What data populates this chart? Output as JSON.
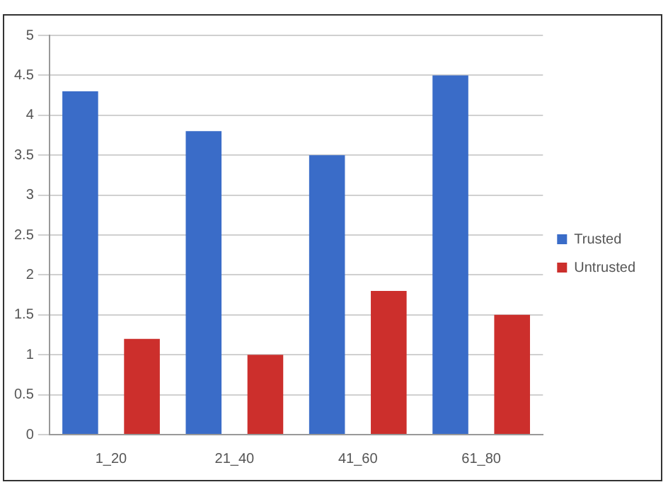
{
  "chart_data": {
    "type": "bar",
    "categories": [
      "1_20",
      "21_40",
      "41_60",
      "61_80"
    ],
    "series": [
      {
        "name": "Trusted",
        "color": "#3a6cc8",
        "values": [
          4.3,
          3.8,
          3.5,
          4.5
        ]
      },
      {
        "name": "Untrusted",
        "color": "#cc2f2c",
        "values": [
          1.2,
          1.0,
          1.8,
          1.5
        ]
      }
    ],
    "ylim": [
      0,
      5
    ],
    "yticks": [
      0,
      0.5,
      1,
      1.5,
      2,
      2.5,
      3,
      3.5,
      4,
      4.5,
      5
    ],
    "grid": "y",
    "legend": "right"
  }
}
